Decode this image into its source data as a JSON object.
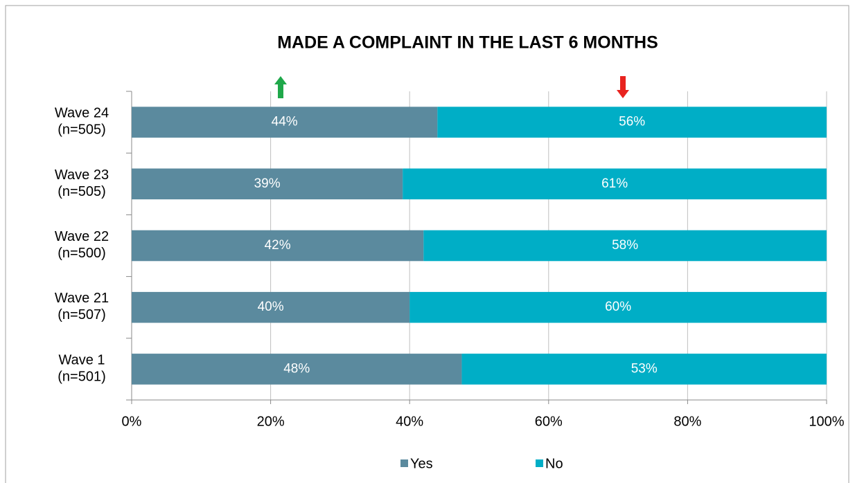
{
  "chart_data": {
    "type": "stacked_bar_horizontal",
    "title": "MADE A COMPLAINT IN THE LAST 6 MONTHS",
    "categories": [
      "Wave 24\n(n=505)",
      "Wave 23\n(n=505)",
      "Wave 22\n(n=500)",
      "Wave 21\n(n=507)",
      "Wave 1\n(n=501)"
    ],
    "series": [
      {
        "name": "Yes",
        "color": "#5b8a9e",
        "values": [
          44,
          39,
          42,
          40,
          47.5
        ],
        "value_labels": [
          "44%",
          "39%",
          "42%",
          "40%",
          "48%"
        ]
      },
      {
        "name": "No",
        "color": "#00aec6",
        "values": [
          56,
          61,
          58,
          60,
          52.5
        ],
        "value_labels": [
          "56%",
          "61%",
          "58%",
          "60%",
          "53%"
        ]
      }
    ],
    "xlim": [
      0,
      100
    ],
    "xticks": [
      {
        "value": 0,
        "label": "0%"
      },
      {
        "value": 20,
        "label": "20%"
      },
      {
        "value": 40,
        "label": "40%"
      },
      {
        "value": 60,
        "label": "60%"
      },
      {
        "value": 80,
        "label": "80%"
      },
      {
        "value": 100,
        "label": "100%"
      }
    ],
    "grid": true,
    "legend": "bottom"
  }
}
